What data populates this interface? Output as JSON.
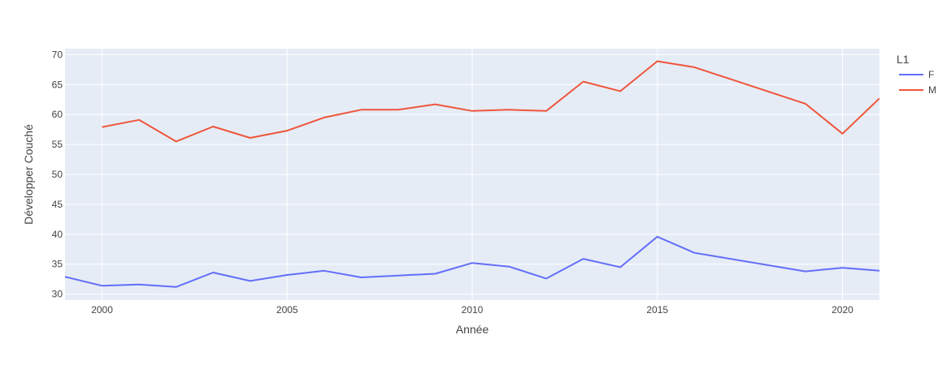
{
  "chart_data": {
    "type": "line",
    "xlabel": "Année",
    "ylabel": "Développer Couché",
    "xlim": [
      1999,
      2021
    ],
    "ylim": [
      29,
      71
    ],
    "x_ticks": [
      2000,
      2005,
      2010,
      2015,
      2020
    ],
    "y_ticks": [
      30,
      35,
      40,
      45,
      50,
      55,
      60,
      65,
      70
    ],
    "grid": true,
    "legend": {
      "title": "L1",
      "position": "top-right"
    },
    "series": [
      {
        "name": "F",
        "color": "#636efa",
        "x": [
          1999,
          2000,
          2001,
          2002,
          2003,
          2004,
          2005,
          2006,
          2007,
          2008,
          2009,
          2010,
          2011,
          2012,
          2013,
          2014,
          2015,
          2016,
          2019,
          2020,
          2021
        ],
        "values": [
          32.9,
          31.4,
          31.6,
          31.2,
          33.6,
          32.2,
          33.2,
          33.9,
          32.8,
          33.1,
          33.4,
          35.2,
          34.6,
          32.6,
          35.9,
          34.5,
          39.6,
          36.9,
          33.8,
          34.4,
          33.9
        ]
      },
      {
        "name": "M",
        "color": "#ef553b",
        "x": [
          2000,
          2001,
          2002,
          2003,
          2004,
          2005,
          2006,
          2007,
          2008,
          2009,
          2010,
          2011,
          2012,
          2013,
          2014,
          2015,
          2016,
          2019,
          2020,
          2021
        ],
        "values": [
          57.9,
          59.1,
          55.5,
          58.0,
          56.1,
          57.3,
          59.5,
          60.8,
          60.8,
          61.7,
          60.6,
          60.8,
          60.6,
          65.5,
          63.9,
          68.9,
          67.9,
          61.8,
          56.8,
          62.7
        ]
      }
    ]
  }
}
